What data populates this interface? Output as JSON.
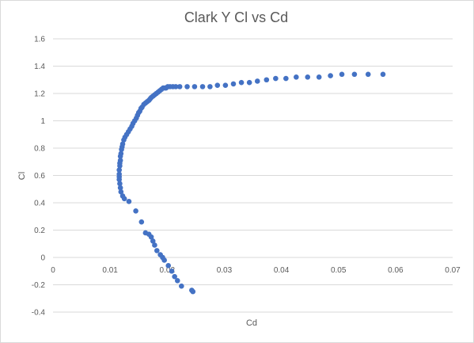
{
  "chart_data": {
    "type": "scatter",
    "title": "Clark Y Cl vs Cd",
    "xlabel": "Cd",
    "ylabel": "Cl",
    "xlim": [
      0,
      0.07
    ],
    "ylim": [
      -0.4,
      1.6
    ],
    "xticks": [
      "0",
      "0.01",
      "0.02",
      "0.03",
      "0.04",
      "0.05",
      "0.06",
      "0.07"
    ],
    "yticks": [
      "-0.4",
      "-0.2",
      "0",
      "0.2",
      "0.4",
      "0.6",
      "0.8",
      "1",
      "1.2",
      "1.4",
      "1.6"
    ],
    "grid": true,
    "marker_color": "#4472C4",
    "series": [
      {
        "x": [
          0.0245,
          0.0243,
          0.0225,
          0.0218,
          0.0213,
          0.0208,
          0.0202,
          0.0195,
          0.0192,
          0.0188,
          0.0182,
          0.0178,
          0.0175,
          0.0172,
          0.0168,
          0.0162,
          0.0155,
          0.0145,
          0.0133,
          0.0125,
          0.0122,
          0.0119,
          0.0118,
          0.0117,
          0.0116,
          0.0116,
          0.0116,
          0.0116,
          0.0117,
          0.0117,
          0.0118,
          0.0118,
          0.0119,
          0.012,
          0.0121,
          0.0122,
          0.0124,
          0.0126,
          0.0129,
          0.0132,
          0.0135,
          0.0138,
          0.014,
          0.0143,
          0.0146,
          0.0148,
          0.015,
          0.0152,
          0.0154,
          0.0156,
          0.0159,
          0.0162,
          0.0165,
          0.0168,
          0.017,
          0.0172,
          0.0175,
          0.0178,
          0.0181,
          0.0184,
          0.0187,
          0.019,
          0.0193,
          0.0196,
          0.0198,
          0.0201,
          0.0205,
          0.021,
          0.0215,
          0.0222,
          0.0235,
          0.0248,
          0.0262,
          0.0275,
          0.0288,
          0.0302,
          0.0316,
          0.033,
          0.0344,
          0.0358,
          0.0374,
          0.039,
          0.0408,
          0.0426,
          0.0446,
          0.0466,
          0.0486,
          0.0506,
          0.0528,
          0.0552,
          0.0578
        ],
        "y": [
          -0.25,
          -0.24,
          -0.21,
          -0.17,
          -0.14,
          -0.1,
          -0.06,
          -0.02,
          0,
          0.02,
          0.05,
          0.09,
          0.12,
          0.15,
          0.17,
          0.18,
          0.26,
          0.34,
          0.41,
          0.43,
          0.45,
          0.48,
          0.51,
          0.54,
          0.57,
          0.59,
          0.61,
          0.64,
          0.67,
          0.69,
          0.71,
          0.74,
          0.76,
          0.79,
          0.81,
          0.83,
          0.86,
          0.88,
          0.9,
          0.92,
          0.94,
          0.96,
          0.98,
          1,
          1.02,
          1.04,
          1.06,
          1.07,
          1.09,
          1.1,
          1.12,
          1.13,
          1.14,
          1.15,
          1.16,
          1.17,
          1.18,
          1.19,
          1.2,
          1.21,
          1.22,
          1.23,
          1.24,
          1.24,
          1.24,
          1.25,
          1.25,
          1.25,
          1.25,
          1.25,
          1.25,
          1.25,
          1.25,
          1.25,
          1.26,
          1.26,
          1.27,
          1.28,
          1.28,
          1.29,
          1.3,
          1.31,
          1.31,
          1.32,
          1.32,
          1.32,
          1.33,
          1.34,
          1.34,
          1.34,
          1.34
        ]
      }
    ]
  }
}
